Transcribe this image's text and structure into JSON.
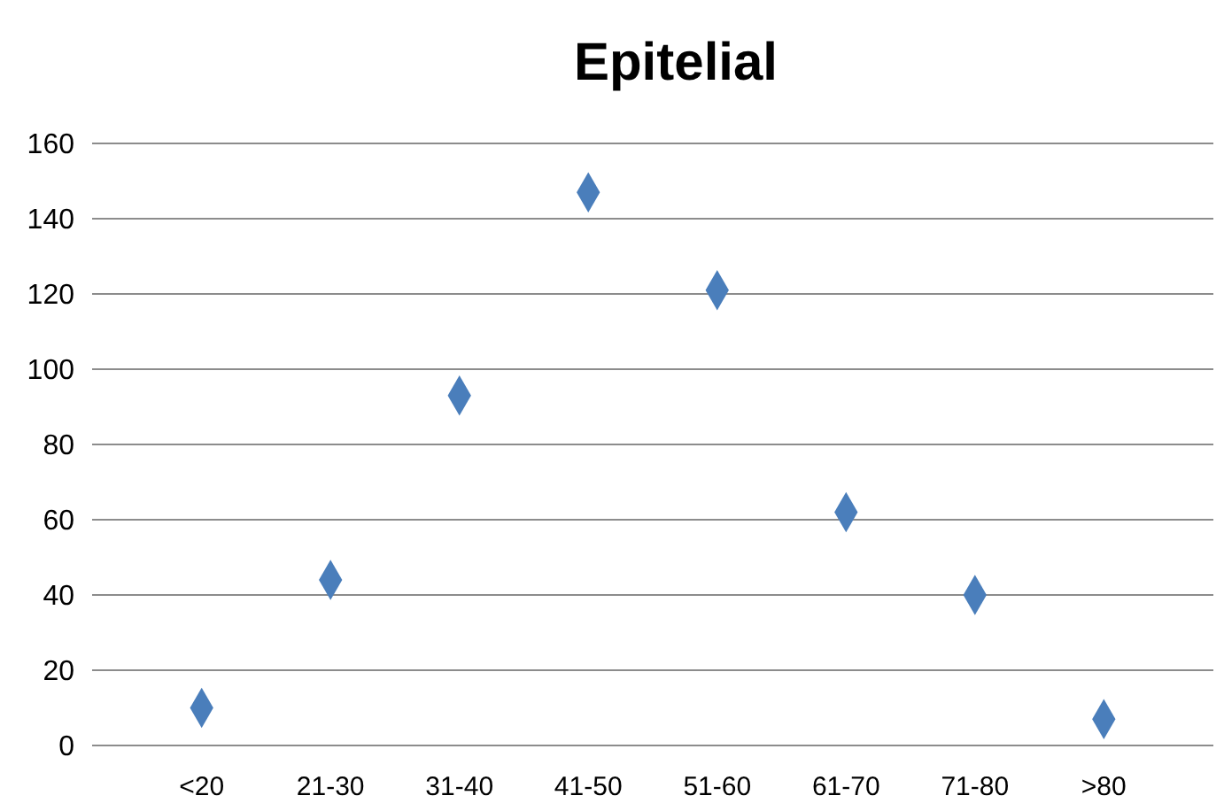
{
  "chart_data": {
    "type": "scatter",
    "title": "Epitelial",
    "categories": [
      "<20",
      "21-30",
      "31-40",
      "41-50",
      "51-60",
      "61-70",
      "71-80",
      ">80"
    ],
    "values": [
      10,
      44,
      93,
      147,
      121,
      62,
      40,
      7
    ],
    "color": "#4a7ebb",
    "marker": "diamond",
    "ylim": [
      0,
      160
    ],
    "yticks": [
      0,
      20,
      40,
      60,
      80,
      100,
      120,
      140,
      160
    ],
    "grid": "y"
  }
}
